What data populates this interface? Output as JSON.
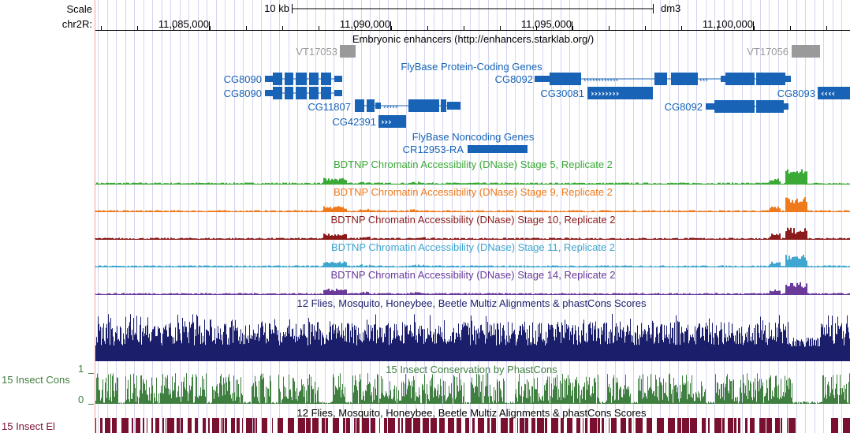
{
  "header": {
    "scale_label": "Scale",
    "scale_value": "10 kb",
    "assembly": "dm3",
    "chrom_label": "chr2R:"
  },
  "ruler": {
    "ticks": [
      {
        "label": "11,085,000"
      },
      {
        "label": "11,090,000"
      },
      {
        "label": "11,095,000"
      },
      {
        "label": "11,100,000"
      }
    ]
  },
  "tracks": {
    "enhancers": {
      "title": "Embryonic enhancers (http://enhancers.starklab.org/)",
      "items": [
        "VT17053",
        "VT17056"
      ]
    },
    "coding_genes": {
      "title": "FlyBase Protein-Coding Genes",
      "genes": [
        "CG8090",
        "CG8090",
        "CG11807",
        "CG42391",
        "CG8092",
        "CG30081",
        "CG8092",
        "CG8093"
      ]
    },
    "noncoding_genes": {
      "title": "FlyBase Noncoding Genes",
      "genes": [
        "CR12953-RA"
      ]
    },
    "dnase": [
      {
        "title": "BDTNP Chromatin Accessibility (DNase) Stage 5, Replicate 2",
        "color": "#3aa935"
      },
      {
        "title": "BDTNP Chromatin Accessibility (DNase) Stage 9, Replicate 2",
        "color": "#ee7a1c"
      },
      {
        "title": "BDTNP Chromatin Accessibility (DNase) Stage 10, Replicate 2",
        "color": "#8b1a1a"
      },
      {
        "title": "BDTNP Chromatin Accessibility (DNase) Stage 11, Replicate 2",
        "color": "#3fa6cf"
      },
      {
        "title": "BDTNP Chromatin Accessibility (DNase) Stage 14, Replicate 2",
        "color": "#6a3a9a"
      }
    ],
    "multiz": {
      "title": "12 Flies, Mosquito, Honeybee, Beetle Multiz Alignments & phastCons Scores",
      "color": "#1b1f6b"
    },
    "phastcons": {
      "title": "15 Insect Conservation by PhastCons",
      "side_label": "15 Insect Cons",
      "ymax_label": "1",
      "ymin_label": "0",
      "color": "#3f7f3f"
    },
    "elements": {
      "title": "12 Flies, Mosquito, Honeybee, Beetle Multiz Alignments & phastCons Scores",
      "side_label": "15 Insect El",
      "color": "#7a1030"
    }
  },
  "colors": {
    "gene_blue": "#1863b6",
    "enhancer_gray": "#9a9a9a",
    "grid_line": "#d4d4f2",
    "left_margin_line": "#f2a0a0"
  }
}
